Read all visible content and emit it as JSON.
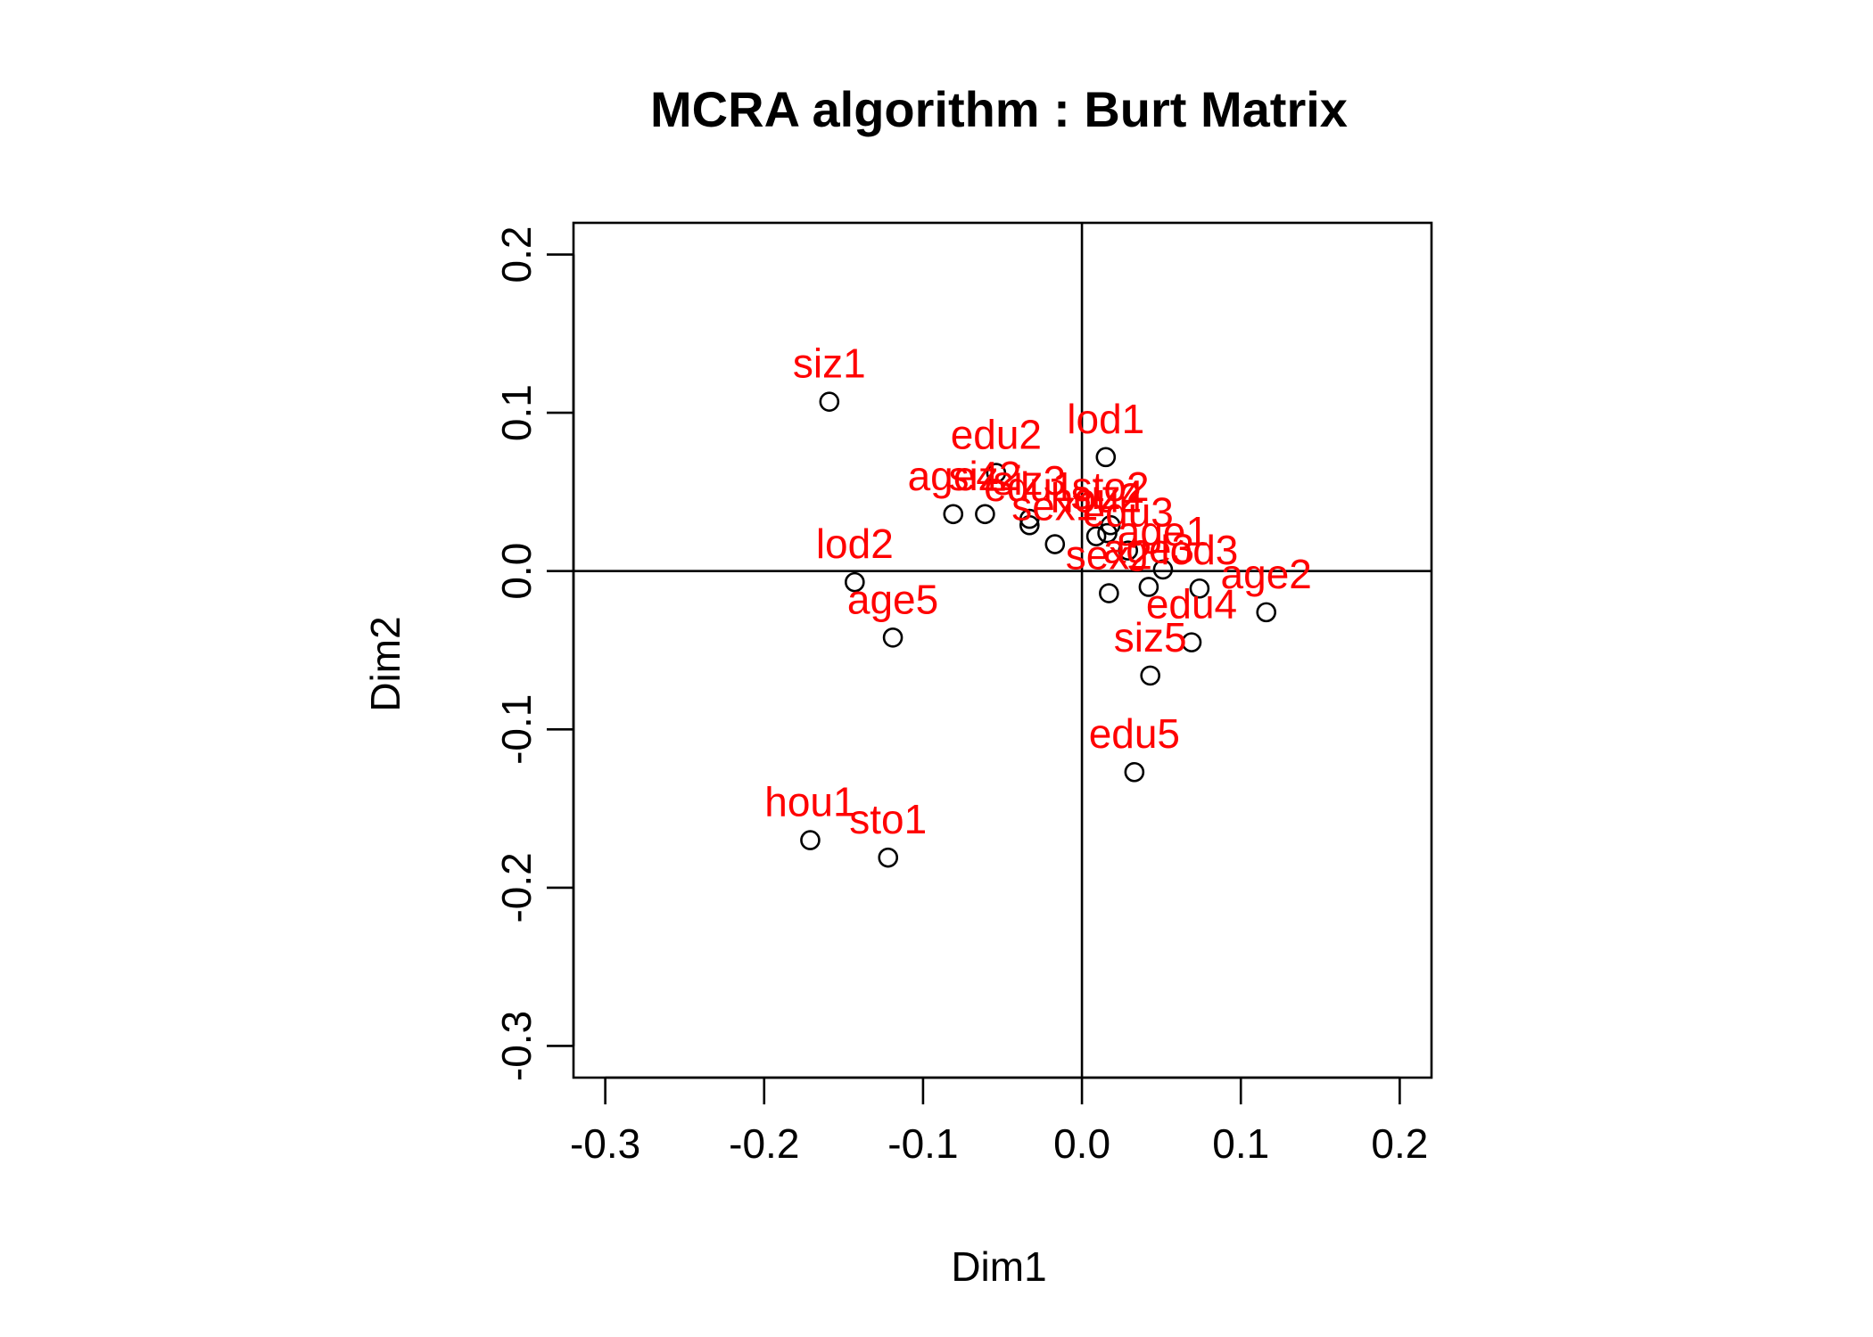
{
  "chart_data": {
    "type": "scatter",
    "title": "MCRA algorithm : Burt Matrix",
    "xlabel": "Dim1",
    "ylabel": "Dim2",
    "xlim": [
      -0.32,
      0.22
    ],
    "ylim": [
      -0.32,
      0.22
    ],
    "xticks": [
      -0.3,
      -0.2,
      -0.1,
      0.0,
      0.1,
      0.2
    ],
    "yticks": [
      -0.3,
      -0.2,
      -0.1,
      0.0,
      0.1,
      0.2
    ],
    "xtick_labels": [
      "-0.3",
      "-0.2",
      "-0.1",
      "0.0",
      "0.1",
      "0.2"
    ],
    "ytick_labels": [
      "-0.3",
      "-0.2",
      "-0.1",
      "0.0",
      "0.1",
      "0.2"
    ],
    "reference_lines": {
      "x": 0,
      "y": 0
    },
    "point_color": "#000000",
    "label_color": "#ff0000",
    "points": [
      {
        "label": "siz1",
        "x": -0.159,
        "y": 0.107
      },
      {
        "label": "lod1",
        "x": 0.015,
        "y": 0.072
      },
      {
        "label": "edu2",
        "x": -0.054,
        "y": 0.062
      },
      {
        "label": "age4",
        "x": -0.081,
        "y": 0.036
      },
      {
        "label": "siz2",
        "x": -0.061,
        "y": 0.036
      },
      {
        "label": "siz3",
        "x": -0.033,
        "y": 0.033
      },
      {
        "label": "edu1",
        "x": -0.033,
        "y": 0.029
      },
      {
        "label": "sex1",
        "x": -0.017,
        "y": 0.017
      },
      {
        "label": "sto2",
        "x": 0.018,
        "y": 0.029
      },
      {
        "label": "hou2",
        "x": 0.009,
        "y": 0.022
      },
      {
        "label": "siz4",
        "x": 0.016,
        "y": 0.024
      },
      {
        "label": "edu3",
        "x": 0.029,
        "y": 0.013
      },
      {
        "label": "age1",
        "x": 0.051,
        "y": 0.001
      },
      {
        "label": "age3",
        "x": 0.042,
        "y": -0.01
      },
      {
        "label": "sex2",
        "x": 0.017,
        "y": -0.014
      },
      {
        "label": "lod3",
        "x": 0.074,
        "y": -0.011
      },
      {
        "label": "age2",
        "x": 0.116,
        "y": -0.026
      },
      {
        "label": "edu4",
        "x": 0.069,
        "y": -0.045
      },
      {
        "label": "siz5",
        "x": 0.043,
        "y": -0.066
      },
      {
        "label": "edu5",
        "x": 0.033,
        "y": -0.127
      },
      {
        "label": "lod2",
        "x": -0.143,
        "y": -0.007
      },
      {
        "label": "age5",
        "x": -0.119,
        "y": -0.042
      },
      {
        "label": "hou1",
        "x": -0.171,
        "y": -0.17
      },
      {
        "label": "sto1",
        "x": -0.122,
        "y": -0.181
      }
    ]
  }
}
